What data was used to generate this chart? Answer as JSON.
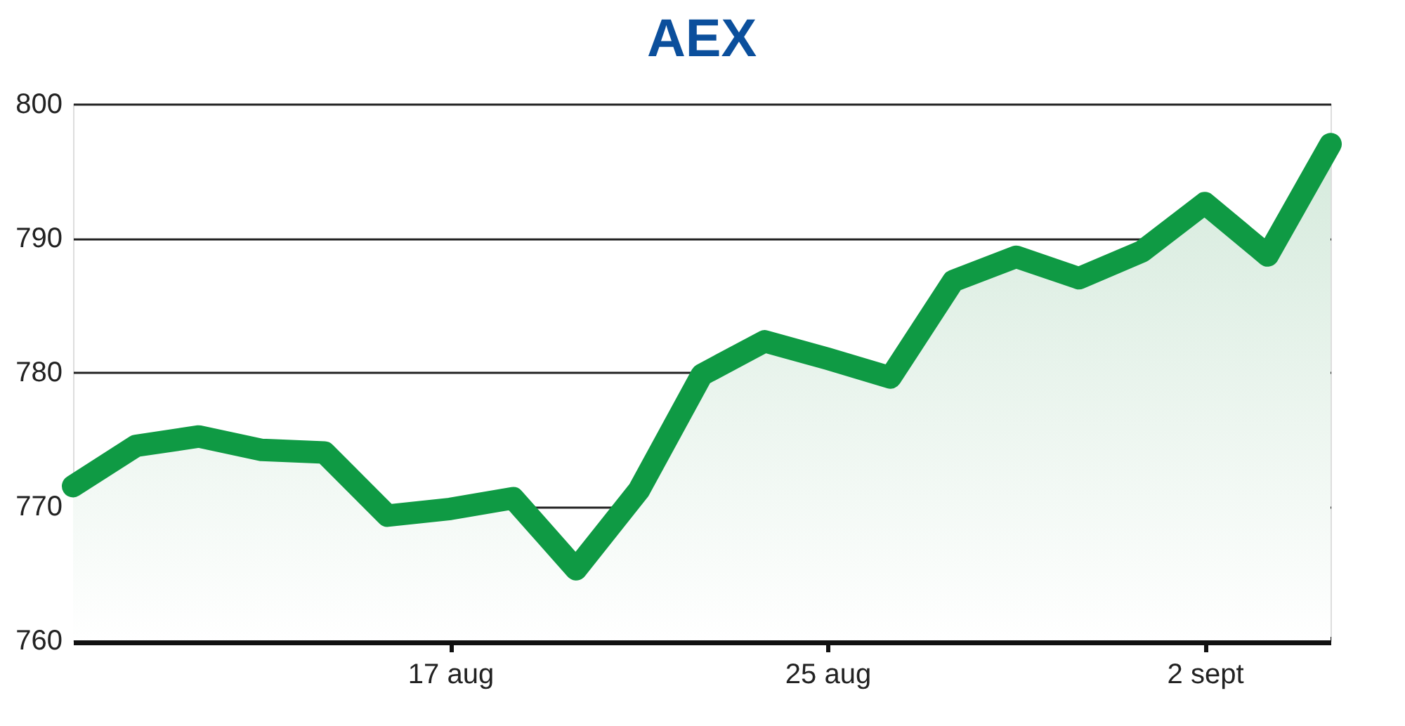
{
  "chart_data": {
    "type": "area",
    "title": "AEX",
    "categories": [
      null,
      null,
      null,
      null,
      null,
      null,
      "17 aug",
      null,
      null,
      null,
      null,
      null,
      "25 aug",
      null,
      null,
      null,
      null,
      null,
      "2 sept",
      null,
      null
    ],
    "series": [
      {
        "color": "#0f9a44",
        "values": [
          771.5,
          774.5,
          775.2,
          774.2,
          774,
          769.3,
          769.8,
          770.6,
          765.3,
          771.2,
          779.8,
          782.3,
          781,
          779.6,
          786.8,
          788.6,
          787,
          789,
          792.6,
          788.7,
          797
        ]
      }
    ],
    "ylim": [
      760,
      800
    ],
    "yticks": [
      760,
      770,
      780,
      790,
      800
    ],
    "grid": "y",
    "line_style": "solid"
  }
}
